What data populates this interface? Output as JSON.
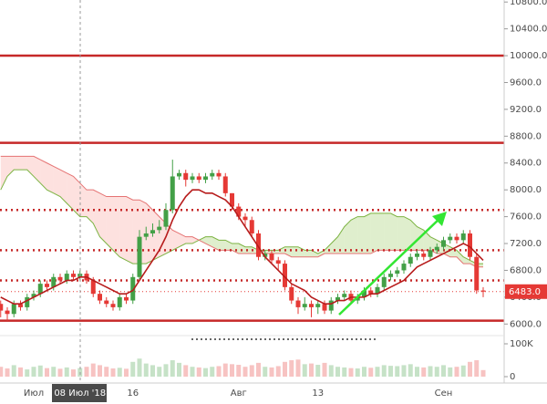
{
  "chart_data": {
    "type": "candlestick",
    "categories": [
      null,
      null,
      null,
      null,
      null,
      "Июл",
      null,
      null,
      null,
      null,
      null,
      null,
      "08 Июл '18",
      null,
      null,
      null,
      null,
      null,
      null,
      null,
      "16",
      null,
      null,
      null,
      null,
      null,
      null,
      null,
      null,
      null,
      null,
      null,
      null,
      null,
      null,
      null,
      "Авг",
      null,
      null,
      null,
      null,
      null,
      null,
      null,
      null,
      null,
      null,
      null,
      "13",
      null,
      null,
      null,
      null,
      null,
      null,
      null,
      null,
      null,
      null,
      null,
      null,
      null,
      null,
      null,
      null,
      null,
      null,
      "Сен",
      null,
      null,
      null,
      null,
      null,
      null
    ],
    "open": [
      6300,
      6200,
      6150,
      6300,
      6250,
      6400,
      6450,
      6600,
      6550,
      6700,
      6650,
      6750,
      6700,
      6750,
      6650,
      6450,
      6350,
      6300,
      6250,
      6400,
      6350,
      6700,
      7300,
      7350,
      7400,
      7450,
      7700,
      8200,
      8250,
      8150,
      8200,
      8150,
      8200,
      8250,
      8200,
      7950,
      7750,
      7600,
      7550,
      7350,
      7000,
      7050,
      6950,
      6900,
      6550,
      6350,
      6250,
      6300,
      6250,
      6300,
      6200,
      6350,
      6400,
      6450,
      6350,
      6400,
      6500,
      6450,
      6550,
      6700,
      6750,
      6800,
      6900,
      7000,
      7050,
      7000,
      7100,
      7150,
      7250,
      7300,
      7250,
      7350,
      7000,
      6500
    ],
    "high": [
      6350,
      6250,
      6350,
      6350,
      6450,
      6500,
      6650,
      6650,
      6750,
      6750,
      6800,
      6800,
      6800,
      6800,
      6700,
      6500,
      6400,
      6350,
      6450,
      6450,
      6750,
      7400,
      7450,
      7500,
      7550,
      7800,
      8450,
      8300,
      8300,
      8250,
      8250,
      8250,
      8300,
      8300,
      8250,
      7950,
      7800,
      7650,
      7600,
      7400,
      7100,
      7100,
      7000,
      6950,
      6600,
      6400,
      6400,
      6350,
      6350,
      6350,
      6400,
      6450,
      6500,
      6500,
      6450,
      6550,
      6550,
      6600,
      6750,
      6800,
      6850,
      6950,
      7050,
      7100,
      7100,
      7150,
      7200,
      7300,
      7350,
      7350,
      7400,
      7400,
      7050,
      6550
    ],
    "low": [
      6100,
      6050,
      6100,
      6200,
      6200,
      6350,
      6400,
      6500,
      6500,
      6600,
      6600,
      6650,
      6650,
      6600,
      6400,
      6300,
      6250,
      6200,
      6200,
      6300,
      6300,
      6650,
      7250,
      7300,
      7350,
      7400,
      7650,
      8150,
      8050,
      8100,
      8100,
      8100,
      8150,
      8150,
      7900,
      7700,
      7550,
      7450,
      7300,
      6950,
      6950,
      6900,
      6800,
      6500,
      6300,
      6150,
      6200,
      6100,
      6150,
      6150,
      6150,
      6300,
      6350,
      6300,
      6300,
      6350,
      6400,
      6400,
      6500,
      6650,
      6700,
      6750,
      6850,
      6950,
      6950,
      6950,
      7050,
      7100,
      7200,
      7200,
      7200,
      6950,
      6450,
      6400
    ],
    "close": [
      6200,
      6150,
      6300,
      6250,
      6400,
      6450,
      6600,
      6550,
      6700,
      6650,
      6750,
      6700,
      6750,
      6650,
      6450,
      6350,
      6300,
      6250,
      6400,
      6350,
      6700,
      7300,
      7350,
      7400,
      7450,
      7700,
      8200,
      8250,
      8150,
      8200,
      8150,
      8200,
      8250,
      8200,
      7950,
      7750,
      7600,
      7550,
      7350,
      7000,
      7050,
      6950,
      6900,
      6550,
      6350,
      6250,
      6300,
      6250,
      6300,
      6200,
      6350,
      6400,
      6450,
      6350,
      6400,
      6500,
      6450,
      6550,
      6700,
      6750,
      6800,
      6900,
      7000,
      7050,
      7000,
      7100,
      7150,
      7250,
      7300,
      7250,
      7350,
      7000,
      6500,
      6483
    ],
    "volume": [
      30000,
      25000,
      35000,
      28000,
      22000,
      30000,
      34000,
      26000,
      30000,
      24000,
      28000,
      22000,
      26000,
      30000,
      40000,
      35000,
      30000,
      25000,
      27000,
      24000,
      45000,
      55000,
      40000,
      35000,
      30000,
      38000,
      50000,
      42000,
      35000,
      30000,
      28000,
      26000,
      30000,
      32000,
      40000,
      38000,
      36000,
      30000,
      35000,
      42000,
      30000,
      28000,
      32000,
      45000,
      50000,
      52000,
      38000,
      40000,
      36000,
      42000,
      35000,
      30000,
      28000,
      26000,
      25000,
      30000,
      27000,
      30000,
      35000,
      33000,
      32000,
      35000,
      38000,
      30000,
      28000,
      32000,
      30000,
      35000,
      28000,
      30000,
      34000,
      45000,
      50000,
      20000
    ],
    "moving_average": {
      "color": "#b71c1c",
      "values": [
        6400,
        6350,
        6300,
        6300,
        6350,
        6400,
        6450,
        6500,
        6550,
        6600,
        6650,
        6650,
        6700,
        6700,
        6650,
        6600,
        6550,
        6500,
        6450,
        6450,
        6500,
        6650,
        6800,
        6950,
        7100,
        7300,
        7550,
        7750,
        7900,
        8000,
        8000,
        7950,
        7950,
        7900,
        7850,
        7750,
        7600,
        7450,
        7300,
        7150,
        7000,
        6900,
        6800,
        6700,
        6600,
        6550,
        6500,
        6400,
        6350,
        6300,
        6300,
        6350,
        6350,
        6400,
        6400,
        6400,
        6450,
        6450,
        6500,
        6550,
        6600,
        6650,
        6750,
        6850,
        6900,
        6950,
        7000,
        7050,
        7100,
        7150,
        7200,
        7150,
        7050,
        6950
      ]
    },
    "cloud": {
      "span_a_color": "#7cb342",
      "span_b_color": "#e57373",
      "up_fill": "rgba(139,195,74,0.28)",
      "down_fill": "rgba(244,67,54,0.16)",
      "span_a": [
        8000,
        8200,
        8300,
        8300,
        8300,
        8200,
        8100,
        8000,
        7950,
        7900,
        7800,
        7700,
        7600,
        7600,
        7500,
        7300,
        7200,
        7100,
        7000,
        6950,
        6900,
        6900,
        6900,
        6950,
        7000,
        7050,
        7100,
        7150,
        7200,
        7200,
        7250,
        7300,
        7300,
        7250,
        7250,
        7200,
        7200,
        7150,
        7150,
        7100,
        7100,
        7100,
        7100,
        7150,
        7150,
        7150,
        7100,
        7100,
        7050,
        7100,
        7200,
        7300,
        7450,
        7550,
        7600,
        7600,
        7650,
        7650,
        7650,
        7650,
        7600,
        7600,
        7550,
        7450,
        7400,
        7300,
        7250,
        7200,
        7150,
        7100,
        7000,
        6950,
        6900,
        6900
      ],
      "span_b": [
        8500,
        8500,
        8500,
        8500,
        8500,
        8500,
        8450,
        8400,
        8350,
        8300,
        8250,
        8200,
        8100,
        8000,
        8000,
        7950,
        7900,
        7900,
        7900,
        7900,
        7850,
        7850,
        7800,
        7700,
        7600,
        7500,
        7400,
        7350,
        7300,
        7300,
        7250,
        7200,
        7150,
        7100,
        7100,
        7100,
        7050,
        7050,
        7050,
        7050,
        7050,
        7050,
        7050,
        7050,
        7000,
        7000,
        7000,
        7000,
        7000,
        7050,
        7050,
        7050,
        7050,
        7050,
        7050,
        7050,
        7050,
        7100,
        7100,
        7100,
        7100,
        7100,
        7100,
        7100,
        7100,
        7100,
        7050,
        7050,
        7000,
        7000,
        6900,
        6900,
        6850,
        6850
      ]
    },
    "up_color": "#43a047",
    "down_color": "#e53935",
    "levels": [
      {
        "value": 10000,
        "style": "solid",
        "color": "#c62828"
      },
      {
        "value": 8700,
        "style": "solid",
        "color": "#c62828"
      },
      {
        "value": 6050,
        "style": "solid",
        "color": "#c62828"
      },
      {
        "value": 7700,
        "style": "dotted",
        "color": "#c62828"
      },
      {
        "value": 7100,
        "style": "dotted",
        "color": "#c62828"
      },
      {
        "value": 6650,
        "style": "dotted",
        "color": "#c62828"
      }
    ],
    "last_price": {
      "value": 6483,
      "label": "6483.0",
      "color": "#e53935"
    },
    "ylim": [
      5800,
      10830
    ],
    "yticks": [
      {
        "value": 6000,
        "label": "6000.0"
      },
      {
        "value": 6400,
        "label": "6400.0"
      },
      {
        "value": 6800,
        "label": "6800.0"
      },
      {
        "value": 7200,
        "label": "7200.0"
      },
      {
        "value": 7600,
        "label": "7600.0"
      },
      {
        "value": 8000,
        "label": "8000.0"
      },
      {
        "value": 8400,
        "label": "8400.0"
      },
      {
        "value": 8800,
        "label": "8800.0"
      },
      {
        "value": 9200,
        "label": "9200.0"
      },
      {
        "value": 9600,
        "label": "9600.0"
      },
      {
        "value": 10000,
        "label": "10000.0"
      },
      {
        "value": 10400,
        "label": "10400.0"
      },
      {
        "value": 10800,
        "label": "10800.0"
      }
    ],
    "volume_ylim": [
      0,
      120000
    ],
    "volume_yticks": [
      {
        "value": 100000,
        "label": "100K"
      },
      0
    ]
  }
}
